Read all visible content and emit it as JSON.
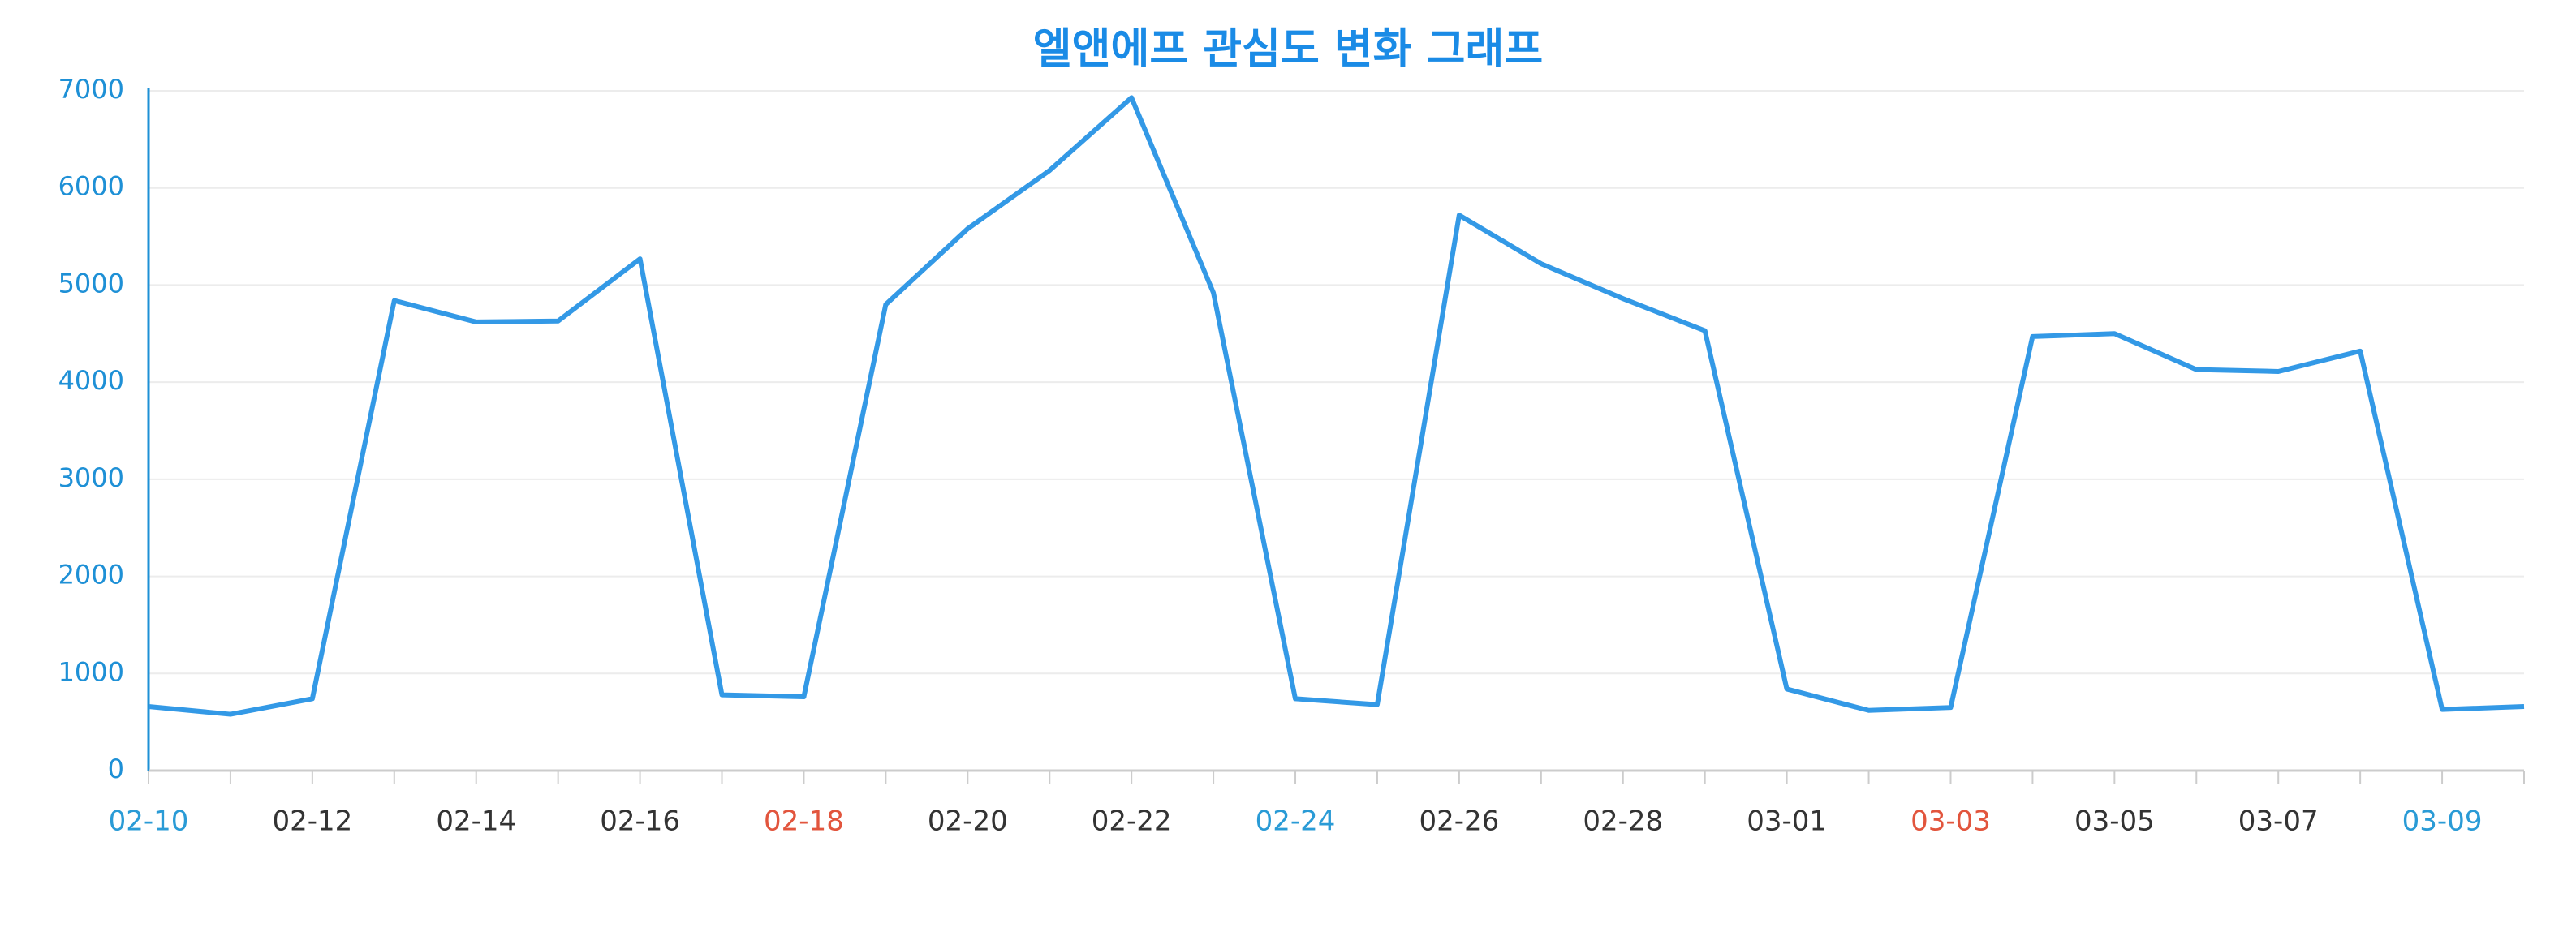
{
  "chart_data": {
    "type": "line",
    "title": "엘앤에프 관심도 변화 그래프",
    "categories": [
      "02-10",
      null,
      "02-12",
      null,
      "02-14",
      null,
      "02-16",
      null,
      "02-18",
      null,
      "02-20",
      null,
      "02-22",
      null,
      "02-24",
      null,
      "02-26",
      null,
      "02-28",
      null,
      "03-01",
      null,
      "03-03",
      null,
      "03-05",
      null,
      "03-07",
      null,
      "03-09",
      null
    ],
    "category_colors": [
      "#2a9bd6",
      null,
      "#333333",
      null,
      "#333333",
      null,
      "#333333",
      null,
      "#e2553d",
      null,
      "#333333",
      null,
      "#333333",
      null,
      "#2a9bd6",
      null,
      "#333333",
      null,
      "#333333",
      null,
      "#333333",
      null,
      "#e2553d",
      null,
      "#333333",
      null,
      "#333333",
      null,
      "#2a9bd6",
      null
    ],
    "series": [
      {
        "name": "관심도",
        "color": "#3399e6",
        "values": [
          660,
          580,
          740,
          4840,
          4620,
          4630,
          5270,
          780,
          760,
          4800,
          5580,
          6180,
          6930,
          4920,
          740,
          680,
          5720,
          5220,
          4860,
          4530,
          840,
          620,
          650,
          4470,
          4500,
          4130,
          4110,
          4320,
          630,
          660
        ]
      }
    ],
    "ylim": [
      0,
      7000
    ],
    "yticks": [
      0,
      1000,
      2000,
      3000,
      4000,
      5000,
      6000,
      7000
    ],
    "grid": true
  }
}
